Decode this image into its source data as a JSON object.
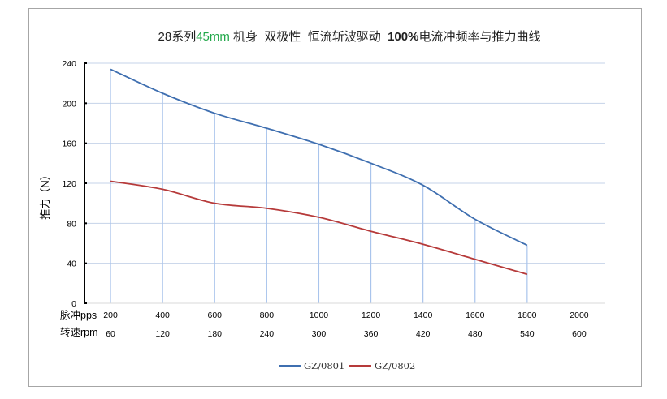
{
  "title": {
    "prefix": "28系列",
    "highlight": "45mm",
    "middle": " 机身  双极性  恒流斩波驱动  ",
    "bold": "100%",
    "suffix": "电流冲频率与推力曲线",
    "highlight_color": "#22a84a"
  },
  "axis_rows": {
    "pps_label": "脉冲pps",
    "rpm_label": "转速rpm"
  },
  "colors": {
    "gridline": "#c5d3e8",
    "axis": "#000000",
    "dropline": "#a9c4ec"
  },
  "chart_data": {
    "type": "line",
    "ylabel": "推力（N）",
    "xlabel": "",
    "x": [
      200,
      400,
      600,
      800,
      1000,
      1200,
      1400,
      1600,
      1800
    ],
    "x_ticks": [
      "200",
      "400",
      "600",
      "800",
      "1000",
      "1200",
      "1400",
      "1600",
      "1800",
      "2000"
    ],
    "x_ticks_rpm": [
      "60",
      "120",
      "180",
      "240",
      "300",
      "360",
      "420",
      "480",
      "540",
      "600"
    ],
    "xlim": [
      100,
      2100
    ],
    "ylim": [
      0,
      240
    ],
    "y_ticks": [
      0,
      40,
      80,
      120,
      160,
      200,
      240
    ],
    "grid": true,
    "legend_position": "bottom",
    "series": [
      {
        "name": "GZ/0801",
        "color": "#3f6fb0",
        "values": [
          234,
          210,
          190,
          175,
          159,
          140,
          118,
          84,
          58
        ]
      },
      {
        "name": "GZ/0802",
        "color": "#b63a3a",
        "values": [
          122,
          114,
          100,
          95,
          86,
          72,
          59,
          44,
          29
        ]
      }
    ]
  }
}
